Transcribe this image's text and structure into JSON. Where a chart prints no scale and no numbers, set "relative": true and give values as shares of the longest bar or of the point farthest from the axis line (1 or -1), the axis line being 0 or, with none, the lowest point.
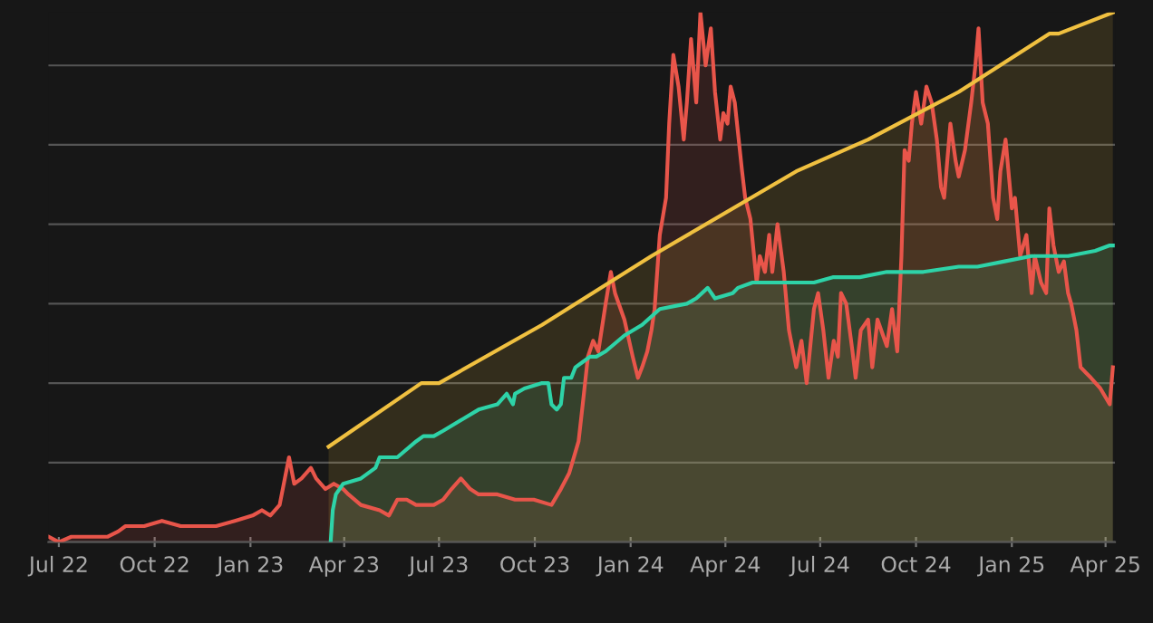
{
  "chart_data": {
    "type": "area",
    "relative": true,
    "grid": "y",
    "xlim": [
      "2022-06-21",
      "2025-04-10"
    ],
    "xticks": [
      {
        "value": "2022-07-01",
        "label": "Jul 22"
      },
      {
        "value": "2022-10-01",
        "label": "Oct 22"
      },
      {
        "value": "2023-01-01",
        "label": "Jan 23"
      },
      {
        "value": "2023-04-01",
        "label": "Apr 23"
      },
      {
        "value": "2023-07-01",
        "label": "Jul 23"
      },
      {
        "value": "2023-10-01",
        "label": "Oct 23"
      },
      {
        "value": "2024-01-01",
        "label": "Jan 24"
      },
      {
        "value": "2024-04-01",
        "label": "Apr 24"
      },
      {
        "value": "2024-07-01",
        "label": "Jul 24"
      },
      {
        "value": "2024-10-01",
        "label": "Oct 24"
      },
      {
        "value": "2025-01-01",
        "label": "Jan 25"
      },
      {
        "value": "2025-04-01",
        "label": "Apr 25"
      }
    ],
    "series": [
      {
        "color": "#e8554a",
        "x": [
          "2022-06-21",
          "2022-07-01",
          "2022-07-13",
          "2022-07-31",
          "2022-08-17",
          "2022-08-27",
          "2022-09-03",
          "2022-09-21",
          "2022-10-08",
          "2022-10-26",
          "2022-11-12",
          "2022-11-29",
          "2022-12-17",
          "2023-01-03",
          "2023-01-12",
          "2023-01-20",
          "2023-01-29",
          "2023-02-03",
          "2023-02-07",
          "2023-02-12",
          "2023-02-19",
          "2023-02-28",
          "2023-03-05",
          "2023-03-14",
          "2023-03-22",
          "2023-03-31",
          "2023-04-05",
          "2023-04-17",
          "2023-05-05",
          "2023-05-14",
          "2023-05-22",
          "2023-05-31",
          "2023-06-09",
          "2023-06-26",
          "2023-07-05",
          "2023-07-13",
          "2023-07-22",
          "2023-07-31",
          "2023-08-08",
          "2023-08-26",
          "2023-09-12",
          "2023-09-30",
          "2023-10-17",
          "2023-10-26",
          "2023-11-03",
          "2023-11-12",
          "2023-11-16",
          "2023-11-21",
          "2023-11-26",
          "2023-12-01",
          "2023-12-08",
          "2023-12-13",
          "2023-12-17",
          "2023-12-26",
          "2024-01-03",
          "2024-01-08",
          "2024-01-12",
          "2024-01-17",
          "2024-01-21",
          "2024-01-24",
          "2024-01-29",
          "2024-02-04",
          "2024-02-07",
          "2024-02-11",
          "2024-02-16",
          "2024-02-21",
          "2024-02-24",
          "2024-02-28",
          "2024-03-04",
          "2024-03-08",
          "2024-03-13",
          "2024-03-18",
          "2024-03-22",
          "2024-03-27",
          "2024-03-30",
          "2024-04-03",
          "2024-04-06",
          "2024-04-10",
          "2024-04-17",
          "2024-04-20",
          "2024-04-25",
          "2024-05-01",
          "2024-05-04",
          "2024-05-09",
          "2024-05-13",
          "2024-05-16",
          "2024-05-21",
          "2024-05-27",
          "2024-06-01",
          "2024-06-08",
          "2024-06-13",
          "2024-06-18",
          "2024-06-25",
          "2024-06-29",
          "2024-07-04",
          "2024-07-09",
          "2024-07-14",
          "2024-07-18",
          "2024-07-21",
          "2024-07-26",
          "2024-08-01",
          "2024-08-04",
          "2024-08-09",
          "2024-08-16",
          "2024-08-20",
          "2024-08-25",
          "2024-09-03",
          "2024-09-08",
          "2024-09-13",
          "2024-09-17",
          "2024-09-20",
          "2024-09-24",
          "2024-09-27",
          "2024-10-01",
          "2024-10-06",
          "2024-10-11",
          "2024-10-16",
          "2024-10-21",
          "2024-10-25",
          "2024-10-28",
          "2024-11-03",
          "2024-11-08",
          "2024-11-11",
          "2024-11-17",
          "2024-11-23",
          "2024-11-27",
          "2024-11-30",
          "2024-12-04",
          "2024-12-09",
          "2024-12-14",
          "2024-12-18",
          "2024-12-21",
          "2024-12-26",
          "2025-01-01",
          "2025-01-04",
          "2025-01-09",
          "2025-01-15",
          "2025-01-20",
          "2025-01-23",
          "2025-01-29",
          "2025-02-03",
          "2025-02-06",
          "2025-02-10",
          "2025-02-15",
          "2025-02-20",
          "2025-02-24",
          "2025-02-27",
          "2025-03-04",
          "2025-03-08",
          "2025-03-13",
          "2025-03-18",
          "2025-03-27",
          "2025-04-05",
          "2025-04-08"
        ],
        "values": [
          0.01,
          0.0,
          0.01,
          0.01,
          0.01,
          0.02,
          0.03,
          0.03,
          0.04,
          0.03,
          0.03,
          0.03,
          0.04,
          0.05,
          0.06,
          0.05,
          0.07,
          0.12,
          0.16,
          0.11,
          0.12,
          0.14,
          0.12,
          0.1,
          0.11,
          0.1,
          0.09,
          0.07,
          0.06,
          0.05,
          0.08,
          0.08,
          0.07,
          0.07,
          0.08,
          0.1,
          0.12,
          0.1,
          0.09,
          0.09,
          0.08,
          0.08,
          0.07,
          0.1,
          0.13,
          0.19,
          0.26,
          0.35,
          0.38,
          0.36,
          0.45,
          0.51,
          0.47,
          0.42,
          0.35,
          0.31,
          0.33,
          0.36,
          0.4,
          0.44,
          0.58,
          0.65,
          0.79,
          0.92,
          0.86,
          0.76,
          0.83,
          0.95,
          0.83,
          1.0,
          0.9,
          0.97,
          0.85,
          0.76,
          0.81,
          0.79,
          0.86,
          0.83,
          0.7,
          0.65,
          0.61,
          0.49,
          0.54,
          0.51,
          0.58,
          0.51,
          0.6,
          0.51,
          0.4,
          0.33,
          0.38,
          0.3,
          0.44,
          0.47,
          0.4,
          0.31,
          0.38,
          0.35,
          0.47,
          0.45,
          0.36,
          0.31,
          0.4,
          0.42,
          0.33,
          0.42,
          0.37,
          0.44,
          0.36,
          0.54,
          0.74,
          0.72,
          0.79,
          0.85,
          0.79,
          0.86,
          0.83,
          0.76,
          0.67,
          0.65,
          0.79,
          0.72,
          0.69,
          0.74,
          0.83,
          0.9,
          0.97,
          0.83,
          0.79,
          0.65,
          0.61,
          0.7,
          0.76,
          0.63,
          0.65,
          0.54,
          0.58,
          0.47,
          0.54,
          0.49,
          0.47,
          0.63,
          0.56,
          0.51,
          0.53,
          0.47,
          0.45,
          0.4,
          0.33,
          0.32,
          0.31,
          0.29,
          0.26,
          0.33
        ]
      },
      {
        "color": "#2ed3a8",
        "x": [
          "2023-03-19",
          "2023-03-21",
          "2023-03-24",
          "2023-03-31",
          "2023-04-17",
          "2023-05-01",
          "2023-05-05",
          "2023-05-22",
          "2023-06-09",
          "2023-06-16",
          "2023-06-26",
          "2023-07-05",
          "2023-07-22",
          "2023-08-08",
          "2023-08-26",
          "2023-09-04",
          "2023-09-10",
          "2023-09-12",
          "2023-09-21",
          "2023-10-08",
          "2023-10-14",
          "2023-10-17",
          "2023-10-22",
          "2023-10-26",
          "2023-10-29",
          "2023-11-05",
          "2023-11-09",
          "2023-11-16",
          "2023-11-23",
          "2023-11-29",
          "2023-12-08",
          "2023-12-26",
          "2024-01-12",
          "2024-01-29",
          "2024-02-24",
          "2024-03-04",
          "2024-03-15",
          "2024-03-22",
          "2024-04-08",
          "2024-04-13",
          "2024-04-27",
          "2024-05-21",
          "2024-06-08",
          "2024-06-25",
          "2024-07-13",
          "2024-08-08",
          "2024-09-03",
          "2024-10-08",
          "2024-11-11",
          "2024-11-29",
          "2024-12-25",
          "2025-01-20",
          "2025-02-24",
          "2025-03-22",
          "2025-04-05",
          "2025-04-08"
        ],
        "values": [
          0.0,
          0.06,
          0.09,
          0.11,
          0.12,
          0.14,
          0.16,
          0.16,
          0.19,
          0.2,
          0.2,
          0.21,
          0.23,
          0.25,
          0.26,
          0.28,
          0.26,
          0.28,
          0.29,
          0.3,
          0.3,
          0.26,
          0.25,
          0.26,
          0.31,
          0.31,
          0.33,
          0.34,
          0.35,
          0.35,
          0.36,
          0.39,
          0.41,
          0.44,
          0.45,
          0.46,
          0.48,
          0.46,
          0.47,
          0.48,
          0.49,
          0.49,
          0.49,
          0.49,
          0.5,
          0.5,
          0.51,
          0.51,
          0.52,
          0.52,
          0.53,
          0.54,
          0.54,
          0.55,
          0.56,
          0.56
        ]
      },
      {
        "color": "#f0c040",
        "x": [
          "2023-03-17",
          "2023-06-14",
          "2023-07-01",
          "2023-10-08",
          "2024-01-21",
          "2024-06-08",
          "2024-08-16",
          "2024-11-11",
          "2025-02-06",
          "2025-02-15",
          "2025-04-08"
        ],
        "values": [
          0.18,
          0.3,
          0.3,
          0.41,
          0.54,
          0.7,
          0.76,
          0.85,
          0.96,
          0.96,
          1.0
        ]
      }
    ]
  }
}
